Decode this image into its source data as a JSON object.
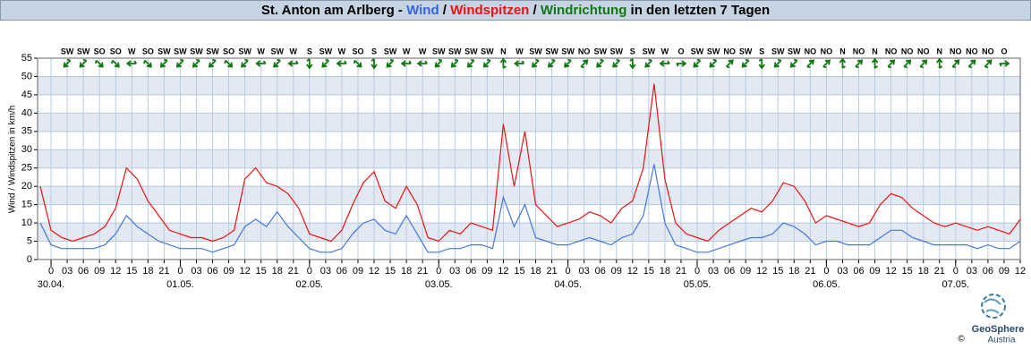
{
  "chart_data": {
    "type": "line",
    "title_parts": [
      {
        "text": "St. Anton am Arlberg - ",
        "color": "#000000"
      },
      {
        "text": "Wind",
        "color": "#3366dd"
      },
      {
        "text": " / ",
        "color": "#000000"
      },
      {
        "text": "Windspitzen",
        "color": "#ee1111"
      },
      {
        "text": " / ",
        "color": "#000000"
      },
      {
        "text": "Windrichtung",
        "color": "#117711"
      },
      {
        "text": " in den letzten 7 Tagen",
        "color": "#000000"
      }
    ],
    "y_label": "Wind / Windspitzen in km/h",
    "ylim": [
      0,
      55
    ],
    "yticks": [
      0,
      5,
      10,
      15,
      20,
      25,
      30,
      35,
      40,
      45,
      50,
      55
    ],
    "xlim": [
      -2.5,
      180
    ],
    "xticks": [
      0,
      {
        "value": 3,
        "label": "03"
      },
      {
        "value": 6,
        "label": "06"
      },
      {
        "value": 9,
        "label": "09"
      },
      12,
      15,
      18,
      21,
      {
        "value": 24,
        "label": "0"
      },
      {
        "value": 27,
        "label": "03"
      },
      {
        "value": 30,
        "label": "06"
      },
      {
        "value": 33,
        "label": "09"
      },
      {
        "value": 36,
        "label": "12"
      },
      {
        "value": 39,
        "label": "15"
      },
      {
        "value": 42,
        "label": "18"
      },
      {
        "value": 45,
        "label": "21"
      },
      {
        "value": 48,
        "label": "0"
      },
      {
        "value": 51,
        "label": "03"
      },
      {
        "value": 54,
        "label": "06"
      },
      {
        "value": 57,
        "label": "09"
      },
      {
        "value": 60,
        "label": "12"
      },
      {
        "value": 63,
        "label": "15"
      },
      {
        "value": 66,
        "label": "18"
      },
      {
        "value": 69,
        "label": "21"
      },
      {
        "value": 72,
        "label": "0"
      },
      {
        "value": 75,
        "label": "03"
      },
      {
        "value": 78,
        "label": "06"
      },
      {
        "value": 81,
        "label": "09"
      },
      {
        "value": 84,
        "label": "12"
      },
      {
        "value": 87,
        "label": "15"
      },
      {
        "value": 90,
        "label": "18"
      },
      {
        "value": 93,
        "label": "21"
      },
      {
        "value": 96,
        "label": "0"
      },
      {
        "value": 99,
        "label": "03"
      },
      {
        "value": 102,
        "label": "06"
      },
      {
        "value": 105,
        "label": "09"
      },
      {
        "value": 108,
        "label": "12"
      },
      {
        "value": 111,
        "label": "15"
      },
      {
        "value": 114,
        "label": "18"
      },
      {
        "value": 117,
        "label": "21"
      },
      {
        "value": 120,
        "label": "0"
      },
      {
        "value": 123,
        "label": "03"
      },
      {
        "value": 126,
        "label": "06"
      },
      {
        "value": 129,
        "label": "09"
      },
      {
        "value": 132,
        "label": "12"
      },
      {
        "value": 135,
        "label": "15"
      },
      {
        "value": 138,
        "label": "18"
      },
      {
        "value": 141,
        "label": "21"
      },
      {
        "value": 144,
        "label": "0"
      },
      {
        "value": 147,
        "label": "03"
      },
      {
        "value": 150,
        "label": "06"
      },
      {
        "value": 153,
        "label": "09"
      },
      {
        "value": 156,
        "label": "12"
      },
      {
        "value": 159,
        "label": "15"
      },
      {
        "value": 162,
        "label": "18"
      },
      {
        "value": 165,
        "label": "21"
      },
      {
        "value": 168,
        "label": "0"
      },
      {
        "value": 171,
        "label": "03"
      },
      {
        "value": 174,
        "label": "06"
      },
      {
        "value": 177,
        "label": "09"
      },
      {
        "value": 180,
        "label": "12"
      }
    ],
    "date_ticks": [
      {
        "value": 0,
        "label": "30.04."
      },
      {
        "value": 24,
        "label": "01.05."
      },
      {
        "value": 48,
        "label": "02.05."
      },
      {
        "value": 72,
        "label": "03.05."
      },
      {
        "value": 96,
        "label": "04.05."
      },
      {
        "value": 120,
        "label": "05.05."
      },
      {
        "value": 144,
        "label": "06.05."
      },
      {
        "value": 168,
        "label": "07.05."
      }
    ],
    "x": [
      -2,
      0,
      2,
      4,
      6,
      8,
      10,
      12,
      14,
      16,
      18,
      20,
      22,
      24,
      26,
      28,
      30,
      32,
      34,
      36,
      38,
      40,
      42,
      44,
      46,
      48,
      50,
      52,
      54,
      56,
      58,
      60,
      62,
      64,
      66,
      68,
      70,
      72,
      74,
      76,
      78,
      80,
      82,
      84,
      86,
      88,
      90,
      92,
      94,
      96,
      98,
      100,
      102,
      104,
      106,
      108,
      110,
      112,
      114,
      116,
      118,
      120,
      122,
      124,
      126,
      128,
      130,
      132,
      134,
      136,
      138,
      140,
      142,
      144,
      146,
      148,
      150,
      152,
      154,
      156,
      158,
      160,
      162,
      164,
      166,
      168,
      170,
      172,
      174,
      176,
      178,
      180
    ],
    "series": [
      {
        "name": "Windspitzen",
        "color": "#ee1111",
        "values": [
          20,
          8,
          6,
          5,
          6,
          7,
          9,
          14,
          25,
          22,
          16,
          12,
          8,
          7,
          6,
          6,
          5,
          6,
          8,
          22,
          25,
          21,
          20,
          18,
          14,
          7,
          6,
          5,
          8,
          15,
          21,
          24,
          16,
          14,
          20,
          15,
          6,
          5,
          8,
          7,
          10,
          9,
          8,
          37,
          20,
          35,
          15,
          12,
          9,
          10,
          11,
          13,
          12,
          10,
          14,
          16,
          25,
          48,
          22,
          10,
          7,
          6,
          5,
          8,
          10,
          12,
          14,
          13,
          16,
          21,
          20,
          16,
          10,
          12,
          11,
          10,
          9,
          10,
          15,
          18,
          17,
          14,
          12,
          10,
          9,
          10,
          9,
          8,
          9,
          8,
          7,
          11
        ]
      },
      {
        "name": "Wind",
        "color": "#4477dd",
        "values": [
          10,
          4,
          3,
          3,
          3,
          3,
          4,
          7,
          12,
          9,
          7,
          5,
          4,
          3,
          3,
          3,
          2,
          3,
          4,
          9,
          11,
          9,
          13,
          9,
          6,
          3,
          2,
          2,
          3,
          7,
          10,
          11,
          8,
          7,
          12,
          7,
          2,
          2,
          3,
          3,
          4,
          4,
          3,
          17,
          9,
          15,
          6,
          5,
          4,
          4,
          5,
          6,
          5,
          4,
          6,
          7,
          12,
          26,
          10,
          4,
          3,
          2,
          2,
          3,
          4,
          5,
          6,
          6,
          7,
          10,
          9,
          7,
          4,
          5,
          5,
          4,
          4,
          4,
          6,
          8,
          8,
          6,
          5,
          4,
          4,
          4,
          4,
          3,
          4,
          3,
          3,
          5
        ]
      }
    ],
    "directions": {
      "color": "#117711",
      "x": [
        3,
        6,
        9,
        12,
        15,
        18,
        21,
        24,
        27,
        30,
        33,
        36,
        39,
        42,
        45,
        48,
        51,
        54,
        57,
        60,
        63,
        66,
        69,
        72,
        75,
        78,
        81,
        84,
        87,
        90,
        93,
        96,
        99,
        102,
        105,
        108,
        111,
        114,
        117,
        120,
        123,
        126,
        129,
        132,
        135,
        138,
        141,
        144,
        147,
        150,
        153,
        156,
        159,
        162,
        165,
        168,
        171,
        174,
        177
      ],
      "labels": [
        "SW",
        "SW",
        "SO",
        "SO",
        "W",
        "SO",
        "SW",
        "SW",
        "SW",
        "SW",
        "SO",
        "SW",
        "W",
        "SW",
        "W",
        "S",
        "SW",
        "W",
        "SO",
        "S",
        "SW",
        "W",
        "W",
        "SW",
        "SW",
        "SW",
        "SW",
        "N",
        "W",
        "SW",
        "SW",
        "SW",
        "NO",
        "SW",
        "SW",
        "S",
        "SW",
        "W",
        "O",
        "SW",
        "SW",
        "NO",
        "SW",
        "S",
        "SW",
        "SW",
        "NO",
        "NO",
        "N",
        "NO",
        "N",
        "NO",
        "NO",
        "NO",
        "N",
        "NO",
        "NO",
        "NO",
        "O"
      ]
    },
    "grid": true,
    "branding": {
      "name": "GeoSphere",
      "sub": "Austria",
      "copyright": "©"
    }
  }
}
